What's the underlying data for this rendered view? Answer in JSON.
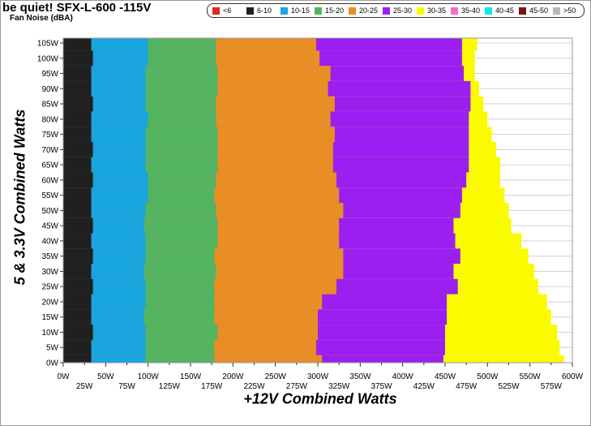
{
  "chart_title": "be quiet! SFX-L-600 -115V",
  "chart_subtitle": "Fan Noise (dBA)",
  "chart_data": {
    "type": "heatmap",
    "title": "be quiet! SFX-L-600 -115V",
    "subtitle": "Fan Noise (dBA)",
    "xlabel": "+12V Combined Watts",
    "ylabel": "5 & 3.3V Combined Watts",
    "xlim": [
      0,
      600
    ],
    "ylim": [
      0,
      105
    ],
    "x_ticks_top": [
      "0W",
      "50W",
      "100W",
      "150W",
      "200W",
      "250W",
      "300W",
      "350W",
      "400W",
      "450W",
      "500W",
      "550W",
      "600W"
    ],
    "x_ticks_bottom": [
      "25W",
      "75W",
      "125W",
      "175W",
      "225W",
      "275W",
      "325W",
      "375W",
      "425W",
      "475W",
      "525W",
      "575W"
    ],
    "y_ticks": [
      "0W",
      "5W",
      "10W",
      "15W",
      "20W",
      "25W",
      "30W",
      "35W",
      "40W",
      "45W",
      "50W",
      "55W",
      "60W",
      "65W",
      "70W",
      "75W",
      "80W",
      "85W",
      "90W",
      "95W",
      "100W",
      "105W"
    ],
    "grid": true,
    "legend_position": "top",
    "legend": [
      {
        "label": "<6",
        "color": "#e12728"
      },
      {
        "label": "6-10",
        "color": "#221f20"
      },
      {
        "label": "10-15",
        "color": "#19a5dd"
      },
      {
        "label": "15-20",
        "color": "#55b461"
      },
      {
        "label": "20-25",
        "color": "#e98d25"
      },
      {
        "label": "25-30",
        "color": "#9b1ff0"
      },
      {
        "label": "30-35",
        "color": "#fbfb00"
      },
      {
        "label": "35-40",
        "color": "#f36fc3"
      },
      {
        "label": "40-45",
        "color": "#10e6ee"
      },
      {
        "label": "45-50",
        "color": "#7c1414"
      },
      {
        "label": ">50",
        "color": "#b9b9b9"
      }
    ],
    "bands": [
      {
        "label": "6-10",
        "x_end": [
          33,
          33,
          35,
          33,
          33,
          35,
          33,
          35,
          33,
          35,
          33,
          33,
          35,
          33,
          35,
          33,
          33,
          35,
          33,
          33,
          35,
          33
        ]
      },
      {
        "label": "10-15",
        "x_end": [
          97,
          97,
          97,
          95,
          97,
          97,
          95,
          97,
          97,
          95,
          97,
          100,
          100,
          97,
          97,
          97,
          100,
          97,
          97,
          97,
          100,
          100
        ]
      },
      {
        "label": "15-20",
        "x_end": [
          178,
          178,
          182,
          178,
          178,
          178,
          180,
          178,
          182,
          182,
          180,
          178,
          180,
          182,
          182,
          182,
          180,
          180,
          182,
          182,
          180,
          180
        ]
      },
      {
        "label": "20-25",
        "x_end": [
          305,
          298,
          300,
          300,
          305,
          322,
          330,
          330,
          325,
          325,
          330,
          325,
          322,
          318,
          318,
          320,
          315,
          320,
          312,
          315,
          302,
          298
        ]
      },
      {
        "label": "25-30",
        "x_end": [
          448,
          450,
          450,
          452,
          452,
          465,
          460,
          468,
          462,
          460,
          468,
          470,
          475,
          478,
          478,
          478,
          478,
          480,
          480,
          472,
          470,
          470
        ]
      },
      {
        "label": "30-35",
        "x_end": [
          590,
          585,
          582,
          575,
          570,
          560,
          555,
          548,
          540,
          528,
          525,
          520,
          515,
          515,
          510,
          505,
          500,
          495,
          490,
          485,
          485,
          488
        ]
      }
    ]
  }
}
